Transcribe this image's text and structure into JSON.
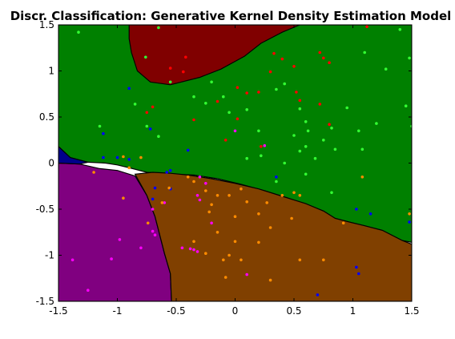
{
  "chart_data": {
    "type": "scatter",
    "title": "Discr. Classification: Generative Kernel Density Estimation Model",
    "xlim": [
      -1.5,
      1.5
    ],
    "ylim": [
      -1.5,
      1.5
    ],
    "xticks": [
      "-1.5",
      "-1",
      "-0.5",
      "0",
      "0.5",
      "1",
      "1.5"
    ],
    "yticks": [
      "1.5",
      "1",
      "0.5",
      "0",
      "-0.5",
      "-1",
      "-1.5"
    ],
    "grid": false,
    "regions": [
      {
        "name": "green",
        "fill": "#008000",
        "polygon": [
          [
            -1.5,
            1.5
          ],
          [
            1.5,
            1.5
          ],
          [
            1.5,
            -0.86
          ],
          [
            1.42,
            -0.84
          ],
          [
            1.25,
            -0.73
          ],
          [
            1.1,
            -0.68
          ],
          [
            0.97,
            -0.64
          ],
          [
            0.85,
            -0.6
          ],
          [
            0.75,
            -0.52
          ],
          [
            0.6,
            -0.45
          ],
          [
            0.45,
            -0.38
          ],
          [
            0.25,
            -0.3
          ],
          [
            0.05,
            -0.23
          ],
          [
            -0.15,
            -0.17
          ],
          [
            -0.35,
            -0.13
          ],
          [
            -0.55,
            -0.12
          ],
          [
            -0.75,
            -0.1
          ],
          [
            -0.9,
            -0.05
          ],
          [
            -1.0,
            -0.02
          ],
          [
            -1.1,
            0.0
          ],
          [
            -1.25,
            0.01
          ],
          [
            -1.4,
            0.06
          ],
          [
            -1.5,
            0.18
          ]
        ]
      },
      {
        "name": "dark-red",
        "fill": "#800000",
        "polygon": [
          [
            -0.9,
            1.5
          ],
          [
            0.55,
            1.5
          ],
          [
            0.4,
            1.42
          ],
          [
            0.22,
            1.3
          ],
          [
            0.08,
            1.16
          ],
          [
            -0.12,
            1.02
          ],
          [
            -0.3,
            0.93
          ],
          [
            -0.55,
            0.85
          ],
          [
            -0.72,
            0.88
          ],
          [
            -0.83,
            1.0
          ],
          [
            -0.88,
            1.2
          ],
          [
            -0.9,
            1.35
          ]
        ]
      },
      {
        "name": "purple",
        "fill": "#800080",
        "polygon": [
          [
            -1.5,
            0.0
          ],
          [
            -1.32,
            -0.01
          ],
          [
            -1.15,
            -0.06
          ],
          [
            -1.0,
            -0.08
          ],
          [
            -0.85,
            -0.14
          ],
          [
            -0.75,
            -0.35
          ],
          [
            -0.68,
            -0.58
          ],
          [
            -0.6,
            -0.98
          ],
          [
            -0.55,
            -1.2
          ],
          [
            -0.54,
            -1.5
          ],
          [
            -1.5,
            -1.5
          ]
        ]
      },
      {
        "name": "brown",
        "fill": "#804000",
        "polygon": [
          [
            -0.85,
            -0.12
          ],
          [
            -0.7,
            -0.1
          ],
          [
            -0.55,
            -0.11
          ],
          [
            -0.4,
            -0.13
          ],
          [
            -0.2,
            -0.17
          ],
          [
            0.0,
            -0.22
          ],
          [
            0.2,
            -0.28
          ],
          [
            0.4,
            -0.36
          ],
          [
            0.6,
            -0.44
          ],
          [
            0.75,
            -0.52
          ],
          [
            0.85,
            -0.6
          ],
          [
            0.97,
            -0.64
          ],
          [
            1.1,
            -0.68
          ],
          [
            1.25,
            -0.73
          ],
          [
            1.42,
            -0.84
          ],
          [
            1.5,
            -0.88
          ],
          [
            1.5,
            -1.5
          ],
          [
            -0.54,
            -1.5
          ],
          [
            -0.55,
            -1.2
          ],
          [
            -0.6,
            -0.98
          ],
          [
            -0.68,
            -0.58
          ],
          [
            -0.75,
            -0.35
          ]
        ]
      },
      {
        "name": "navy",
        "fill": "#00008b",
        "polygon": [
          [
            -1.5,
            0.18
          ],
          [
            -1.4,
            0.06
          ],
          [
            -1.25,
            0.01
          ],
          [
            -1.32,
            -0.01
          ],
          [
            -1.5,
            0.0
          ]
        ]
      }
    ],
    "series": [
      {
        "color": "#ff0000",
        "points": [
          [
            -0.65,
            1.51
          ],
          [
            -0.42,
            1.15
          ],
          [
            -0.44,
            0.99
          ],
          [
            -0.55,
            1.03
          ],
          [
            -0.7,
            0.61
          ],
          [
            -0.75,
            0.55
          ],
          [
            -0.35,
            0.47
          ],
          [
            -0.15,
            0.67
          ],
          [
            0.02,
            0.82
          ],
          [
            0.1,
            0.76
          ],
          [
            0.2,
            0.77
          ],
          [
            0.3,
            0.99
          ],
          [
            0.5,
            1.05
          ],
          [
            0.52,
            0.77
          ],
          [
            0.55,
            0.68
          ],
          [
            0.72,
            1.2
          ],
          [
            0.75,
            1.14
          ],
          [
            0.8,
            1.09
          ],
          [
            0.72,
            0.64
          ],
          [
            0.8,
            0.42
          ],
          [
            0.33,
            1.19
          ],
          [
            0.4,
            1.13
          ],
          [
            -0.08,
            0.25
          ],
          [
            0.02,
            0.48
          ],
          [
            0.22,
            0.18
          ],
          [
            1.12,
            1.48
          ]
        ]
      },
      {
        "color": "#33ff33",
        "points": [
          [
            -1.33,
            1.42
          ],
          [
            -1.15,
            0.4
          ],
          [
            -0.85,
            0.64
          ],
          [
            -0.75,
            0.4
          ],
          [
            -0.65,
            0.29
          ],
          [
            -0.76,
            1.15
          ],
          [
            -0.65,
            1.47
          ],
          [
            -0.55,
            0.88
          ],
          [
            -0.35,
            0.72
          ],
          [
            -0.2,
            0.88
          ],
          [
            -0.1,
            0.72
          ],
          [
            -0.25,
            0.65
          ],
          [
            -0.05,
            0.55
          ],
          [
            0.1,
            0.58
          ],
          [
            0.2,
            0.35
          ],
          [
            0.35,
            0.8
          ],
          [
            0.42,
            0.86
          ],
          [
            0.55,
            0.59
          ],
          [
            0.6,
            0.45
          ],
          [
            0.62,
            0.35
          ],
          [
            0.5,
            0.3
          ],
          [
            0.55,
            0.13
          ],
          [
            0.6,
            0.18
          ],
          [
            0.75,
            0.25
          ],
          [
            0.82,
            0.38
          ],
          [
            0.95,
            0.6
          ],
          [
            1.1,
            1.2
          ],
          [
            1.28,
            1.02
          ],
          [
            1.4,
            1.45
          ],
          [
            1.48,
            1.14
          ],
          [
            1.2,
            0.43
          ],
          [
            1.45,
            0.62
          ],
          [
            1.5,
            0.4
          ],
          [
            0.85,
            0.15
          ],
          [
            1.05,
            0.35
          ],
          [
            0.22,
            0.08
          ],
          [
            0.35,
            -0.2
          ],
          [
            0.42,
            0.0
          ],
          [
            0.6,
            -0.12
          ],
          [
            0.68,
            0.05
          ],
          [
            0.1,
            0.05
          ],
          [
            0.82,
            -0.32
          ],
          [
            1.08,
            0.15
          ]
        ]
      },
      {
        "color": "#0000ff",
        "points": [
          [
            -0.9,
            0.81
          ],
          [
            -1.12,
            0.32
          ],
          [
            -1.12,
            0.06
          ],
          [
            -1.0,
            0.06
          ],
          [
            -0.72,
            0.37
          ],
          [
            -0.9,
            0.04
          ],
          [
            -0.68,
            -0.27
          ],
          [
            -0.55,
            -0.28
          ],
          [
            -0.58,
            -0.1
          ],
          [
            -0.55,
            -0.08
          ],
          [
            -0.4,
            0.14
          ],
          [
            -0.7,
            -0.39
          ],
          [
            0.35,
            -0.15
          ],
          [
            1.03,
            -0.5
          ],
          [
            1.15,
            -0.55
          ],
          [
            1.48,
            -0.64
          ],
          [
            1.05,
            -1.2
          ],
          [
            1.03,
            -1.13
          ],
          [
            0.7,
            -1.43
          ]
        ]
      },
      {
        "color": "#ff00ff",
        "points": [
          [
            -1.38,
            -1.05
          ],
          [
            -1.25,
            -1.38
          ],
          [
            -1.05,
            -1.04
          ],
          [
            -0.98,
            -0.83
          ],
          [
            -0.8,
            -0.92
          ],
          [
            -0.7,
            -0.74
          ],
          [
            -0.7,
            -0.5
          ],
          [
            -0.68,
            -0.78
          ],
          [
            -0.6,
            -0.43
          ],
          [
            -0.45,
            -0.92
          ],
          [
            -0.38,
            -0.93
          ],
          [
            -0.35,
            -0.94
          ],
          [
            -0.32,
            -0.35
          ],
          [
            -0.3,
            -0.4
          ],
          [
            -0.3,
            -0.15
          ],
          [
            -0.25,
            -0.22
          ],
          [
            -0.2,
            -0.65
          ],
          [
            0.0,
            0.35
          ],
          [
            0.25,
            0.19
          ],
          [
            -0.32,
            -0.96
          ],
          [
            0.1,
            -1.21
          ]
        ]
      },
      {
        "color": "#ff8c00",
        "points": [
          [
            -1.2,
            -0.1
          ],
          [
            -0.95,
            -0.38
          ],
          [
            -0.95,
            0.07
          ],
          [
            -0.9,
            -0.05
          ],
          [
            -0.8,
            0.06
          ],
          [
            -0.74,
            -0.65
          ],
          [
            -0.62,
            -0.43
          ],
          [
            -0.56,
            -0.27
          ],
          [
            -0.4,
            -0.15
          ],
          [
            -0.35,
            -0.2
          ],
          [
            -0.25,
            -0.3
          ],
          [
            -0.15,
            -0.35
          ],
          [
            -0.2,
            -0.45
          ],
          [
            -0.05,
            -0.35
          ],
          [
            0.05,
            -0.28
          ],
          [
            0.1,
            -0.42
          ],
          [
            0.0,
            -0.58
          ],
          [
            0.2,
            -0.55
          ],
          [
            0.27,
            -0.43
          ],
          [
            0.3,
            -0.7
          ],
          [
            0.4,
            -0.35
          ],
          [
            0.5,
            -0.32
          ],
          [
            0.55,
            -0.35
          ],
          [
            0.48,
            -0.6
          ],
          [
            0.0,
            -0.85
          ],
          [
            0.2,
            -0.86
          ],
          [
            0.05,
            -1.05
          ],
          [
            -0.05,
            -1.0
          ],
          [
            -0.25,
            -0.98
          ],
          [
            -0.22,
            -0.53
          ],
          [
            -0.35,
            -0.85
          ],
          [
            -0.1,
            -1.05
          ],
          [
            -0.08,
            -1.24
          ],
          [
            0.3,
            -1.27
          ],
          [
            0.55,
            -1.05
          ],
          [
            0.75,
            -1.05
          ],
          [
            0.92,
            -0.65
          ],
          [
            1.08,
            -0.15
          ],
          [
            1.48,
            -0.55
          ],
          [
            -0.15,
            -0.75
          ]
        ]
      }
    ]
  }
}
